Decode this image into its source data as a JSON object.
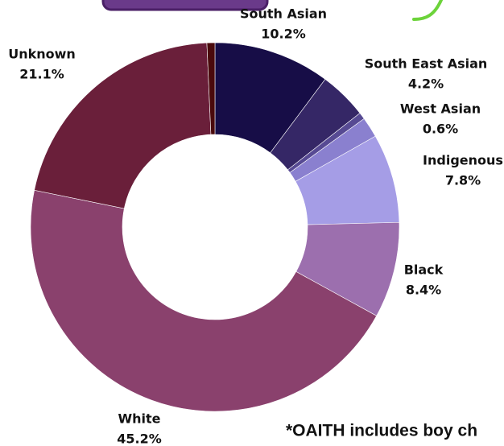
{
  "chart_data": {
    "type": "donut",
    "categories": [
      "South Asian",
      "South East Asian",
      "West Asian",
      null,
      "Indigenous",
      "Black",
      "White",
      "Unknown",
      null
    ],
    "values": [
      10.2,
      4.2,
      0.6,
      1.8,
      7.8,
      8.4,
      45.2,
      21.1,
      0.7
    ],
    "value_labels": [
      "10.2%",
      "4.2%",
      "0.6%",
      null,
      "7.8%",
      "8.4%",
      "45.2%",
      "21.1%",
      null
    ],
    "colors": [
      "#170d47",
      "#352766",
      "#574a93",
      "#8a80cf",
      "#a59de6",
      "#9c6fae",
      "#8a416d",
      "#6a1f3a",
      "#4a0a0c"
    ],
    "footnote": "*OAITH includes boy ch"
  }
}
